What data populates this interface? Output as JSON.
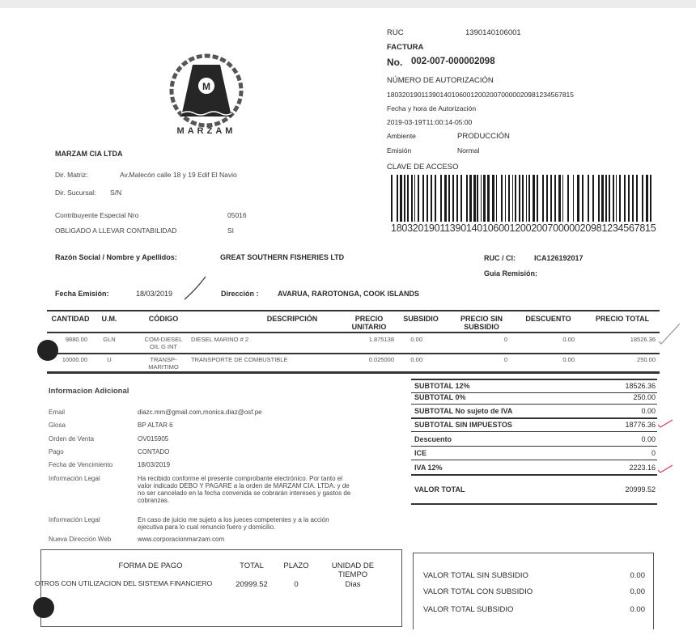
{
  "logo": {
    "text": "MARZAM",
    "badge": "M"
  },
  "header": {
    "ruc_label": "RUC",
    "ruc_value": "1390140106001",
    "doc_type": "FACTURA",
    "number_label": "No.",
    "number_value": "002-007-000002098",
    "auth_label": "NÚMERO DE AUTORIZACIÓN",
    "auth_value": "1803201901139014010600120020070000020981234567815",
    "auth_date_label": "Fecha y hora de Autorización",
    "auth_date_value": "2019-03-19T11:00:14-05:00",
    "env_label": "Ambiente",
    "env_value": "PRODUCCIÓN",
    "emission_label": "Emisión",
    "emission_value": "Normal",
    "access_key_label": "CLAVE DE ACCESO",
    "barcode_digits": "1803201901139014010600120020070000020981234567815"
  },
  "issuer": {
    "name": "MARZAM CIA LTDA",
    "matriz_label": "Dir. Matriz:",
    "matriz_value": "Av.Malecón calle 18  y 19 Edif El Navio",
    "sucursal_label": "Dir. Sucursal:",
    "sucursal_value": "S/N",
    "contrib_label": "Contribuyente Especial Nro",
    "contrib_value": "05016",
    "oblig_label": "OBLIGADO A LLEVAR CONTABILIDAD",
    "oblig_value": "SI"
  },
  "customer": {
    "name_label": "Razón Social / Nombre y Apellidos:",
    "name_value": "GREAT SOUTHERN FISHERIES LTD",
    "ruc_label": "RUC / CI:",
    "ruc_value": "ICA126192017",
    "guia_label": "Guia Remisión:",
    "date_label": "Fecha Emisión:",
    "date_value": "18/03/2019",
    "address_label": "Dirección :",
    "address_value": "AVARUA, RAROTONGA, COOK ISLANDS"
  },
  "items": {
    "headers": [
      "CANTIDAD",
      "U.M.",
      "CÓDIGO",
      "DESCRIPCIÓN",
      "PRECIO UNITARIO",
      "SUBSIDIO",
      "PRECIO SIN SUBSIDIO",
      "DESCUENTO",
      "PRECIO TOTAL"
    ],
    "rows": [
      [
        "9880.00",
        "GLN",
        "COM-DIESEL OIL G INT",
        "DIESEL MARINO # 2",
        "1.875138",
        "0.00",
        "0",
        "0.00",
        "18526.36"
      ],
      [
        "10000.00",
        "U",
        "TRANSP-MARITIMO",
        "TRANSPORTE DE COMBUSTIBLE",
        "0.025000",
        "0.00",
        "0",
        "0.00",
        "250.00"
      ]
    ]
  },
  "additional": {
    "title": "Informacion Adicional",
    "rows": [
      {
        "label": "Email",
        "value": "diazc.mm@gmail.com,monica.diaz@osf.pe"
      },
      {
        "label": "Glosa",
        "value": "BP ALTAR 6"
      },
      {
        "label": "Orden de Venta",
        "value": "OV015905"
      },
      {
        "label": "Pago",
        "value": "CONTADO"
      },
      {
        "label": "Fecha de Vencimiento",
        "value": "18/03/2019"
      },
      {
        "label": "Información Legal",
        "value": "Ha recibido conforme el presente comprobante electrónico. Por tanto el valor indicado DEBO Y PAGARE a la orden de MARZAM CIA. LTDA. y de no ser cancelado en la fecha convenida se cobrarán intereses y gastos de cobranzas."
      },
      {
        "label": "Información Legal",
        "value": "En caso de juicio me sujeto a los jueces competentes y a la acción ejecutiva para lo cual renuncio fuero y domicilio."
      },
      {
        "label": "Nueva Dirección Web",
        "value": "www.corporacionmarzam.com"
      }
    ]
  },
  "totals": [
    {
      "label": "SUBTOTAL 12%",
      "value": "18526.36"
    },
    {
      "label": "SUBTOTAL 0%",
      "value": "250.00"
    },
    {
      "label": "SUBTOTAL No sujeto de IVA",
      "value": "0.00"
    },
    {
      "label": "SUBTOTAL SIN IMPUESTOS",
      "value": "18776.36"
    },
    {
      "label": "Descuento",
      "value": "0.00"
    },
    {
      "label": "ICE",
      "value": "0"
    },
    {
      "label": "IVA 12%",
      "value": "2223.16"
    },
    {
      "label": "VALOR TOTAL",
      "value": "20999.52"
    }
  ],
  "payment": {
    "headers": [
      "FORMA DE PAGO",
      "TOTAL",
      "PLAZO",
      "UNIDAD DE TIEMPO"
    ],
    "row": [
      "OTROS CON UTILIZACION DEL SISTEMA FINANCIERO",
      "20999.52",
      "0",
      "Dias"
    ]
  },
  "subsidy": [
    {
      "label": "VALOR TOTAL SIN SUBSIDIO",
      "value": "0.00"
    },
    {
      "label": "VALOR TOTAL CON SUBSIDIO",
      "value": "0,00"
    },
    {
      "label": "VALOR TOTAL SUBSIDIO",
      "value": "0.00"
    }
  ]
}
